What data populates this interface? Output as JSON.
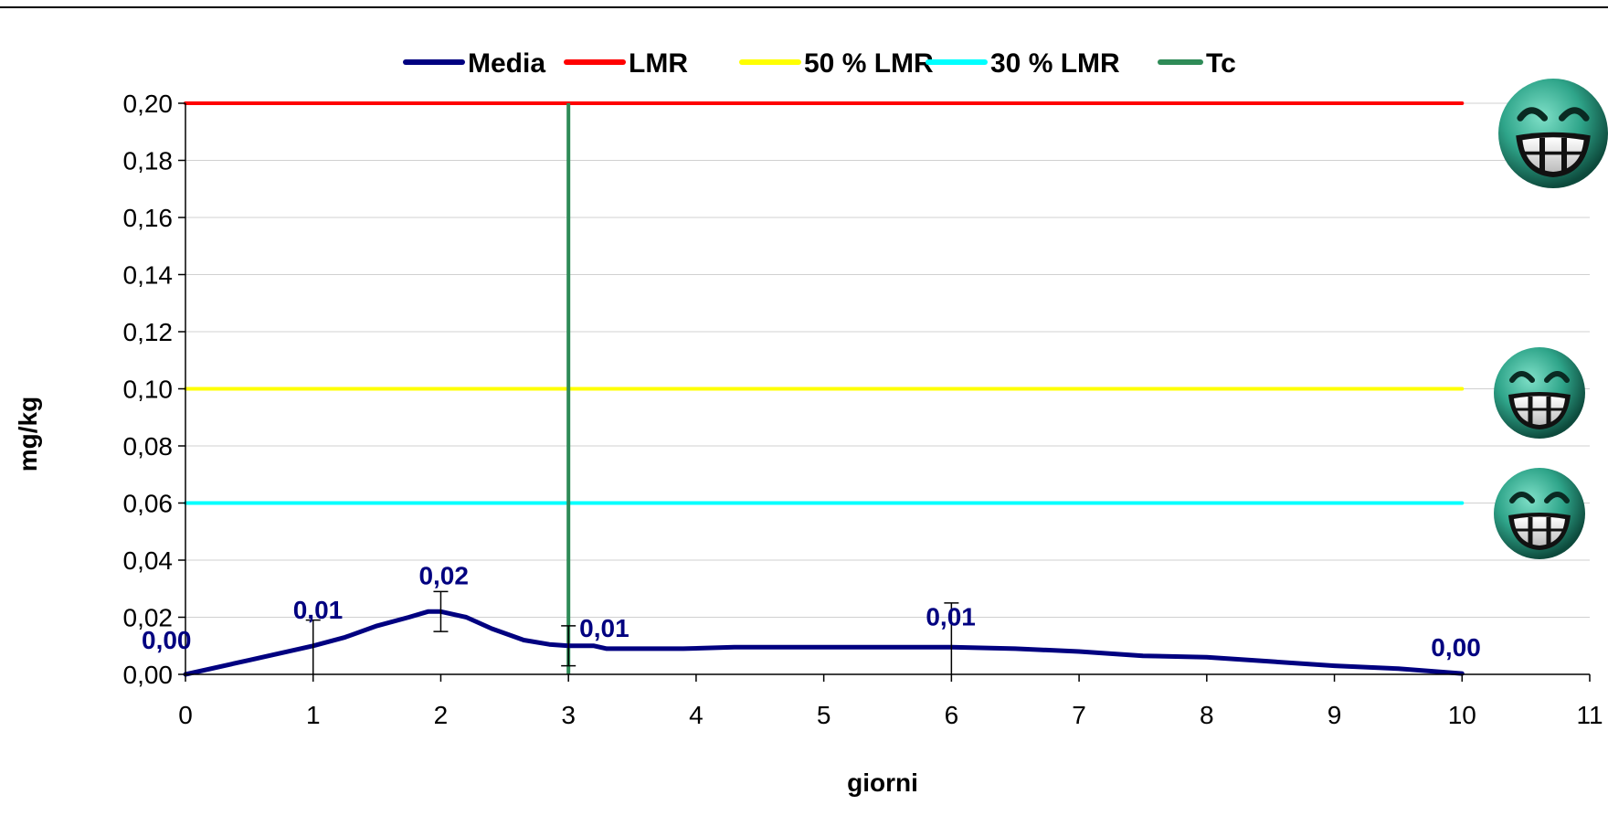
{
  "chart_data": {
    "type": "line",
    "xlabel": "giorni",
    "ylabel": "mg/kg",
    "xlim": [
      0,
      11
    ],
    "ylim": [
      0,
      0.2
    ],
    "x_ticks": [
      "0",
      "1",
      "2",
      "3",
      "4",
      "5",
      "6",
      "7",
      "8",
      "9",
      "10",
      "11"
    ],
    "y_ticks": [
      "0,00",
      "0,02",
      "0,04",
      "0,06",
      "0,08",
      "0,10",
      "0,12",
      "0,14",
      "0,16",
      "0,18",
      "0,20"
    ],
    "grid": "horizontal",
    "legend_position": "top",
    "legend": [
      "Media",
      "LMR",
      "50 % LMR",
      "30 % LMR",
      "Tc"
    ],
    "series": [
      {
        "name": "Media",
        "color": "#000080",
        "x": [
          0,
          0.5,
          1,
          1.25,
          1.5,
          1.75,
          1.9,
          2.0,
          2.2,
          2.4,
          2.65,
          2.85,
          3.0,
          3.2,
          3.3,
          3.5,
          3.9,
          4.3,
          5,
          6,
          6.5,
          7,
          7.5,
          8,
          8.5,
          9,
          9.5,
          10
        ],
        "y": [
          0,
          0.005,
          0.01,
          0.013,
          0.017,
          0.02,
          0.022,
          0.022,
          0.02,
          0.016,
          0.012,
          0.0105,
          0.01,
          0.01,
          0.009,
          0.009,
          0.009,
          0.0095,
          0.0095,
          0.0095,
          0.009,
          0.008,
          0.0065,
          0.006,
          0.0045,
          0.003,
          0.002,
          0.0003
        ]
      },
      {
        "name": "LMR",
        "color": "#ff0000",
        "y": 0.2
      },
      {
        "name": "50 % LMR",
        "color": "#ffff00",
        "y": 0.1
      },
      {
        "name": "30 % LMR",
        "color": "#00ffff",
        "y": 0.06
      },
      {
        "name": "Tc",
        "color": "#2e8b57",
        "x": 3
      }
    ],
    "error_bars": [
      {
        "x": 1,
        "low": 0,
        "high": 0.019
      },
      {
        "x": 2,
        "low": 0.015,
        "high": 0.029
      },
      {
        "x": 3,
        "low": 0.003,
        "high": 0.017
      },
      {
        "x": 6,
        "low": 0,
        "high": 0.025
      }
    ],
    "data_labels": [
      {
        "x": 0,
        "y": 0,
        "text": "0,00"
      },
      {
        "x": 1,
        "y": 0.01,
        "text": "0,01"
      },
      {
        "x": 2,
        "y": 0.022,
        "text": "0,02"
      },
      {
        "x": 3,
        "y": 0.01,
        "text": "0,01"
      },
      {
        "x": 6,
        "y": 0.0095,
        "text": "0,01"
      },
      {
        "x": 10,
        "y": 0,
        "text": "0,00"
      }
    ],
    "icons": [
      "grinning-face-icon",
      "grinning-face-icon",
      "grinning-face-icon"
    ]
  }
}
